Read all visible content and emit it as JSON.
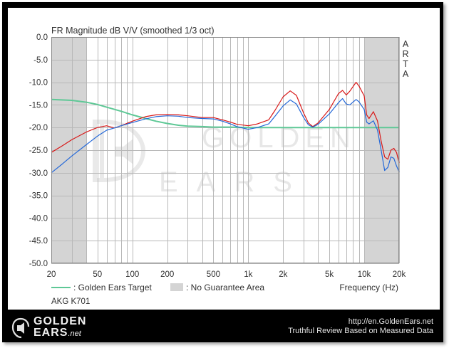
{
  "chart_data": {
    "type": "line",
    "title": "FR Magnitude dB V/V (smoothed 1/3 oct)",
    "xlabel": "Frequency (Hz)",
    "ylabel": "",
    "side_label": [
      "A",
      "R",
      "T",
      "A"
    ],
    "x_scale": "log",
    "xlim": [
      20,
      20000
    ],
    "ylim": [
      -50,
      0
    ],
    "x_ticks": [
      {
        "value": 20,
        "label": "20"
      },
      {
        "value": 50,
        "label": "50"
      },
      {
        "value": 100,
        "label": "100"
      },
      {
        "value": 200,
        "label": "200"
      },
      {
        "value": 500,
        "label": "500"
      },
      {
        "value": 1000,
        "label": "1k"
      },
      {
        "value": 2000,
        "label": "2k"
      },
      {
        "value": 5000,
        "label": "5k"
      },
      {
        "value": 10000,
        "label": "10k"
      },
      {
        "value": 20000,
        "label": "20k"
      }
    ],
    "y_ticks": [
      {
        "value": 0,
        "label": "0.0"
      },
      {
        "value": -5,
        "label": "-5.0"
      },
      {
        "value": -10,
        "label": "-10.0"
      },
      {
        "value": -15,
        "label": "-15.0"
      },
      {
        "value": -20,
        "label": "-20.0"
      },
      {
        "value": -25,
        "label": "-25.0"
      },
      {
        "value": -30,
        "label": "-30.0"
      },
      {
        "value": -35,
        "label": "-35.0"
      },
      {
        "value": -40,
        "label": "-40.0"
      },
      {
        "value": -45,
        "label": "-45.0"
      },
      {
        "value": -50,
        "label": "-50.0"
      }
    ],
    "grid": true,
    "shaded_regions": [
      {
        "name": "No Guarantee Area",
        "x_from": 20,
        "x_to": 40,
        "color": "#d4d4d4"
      },
      {
        "name": "No Guarantee Area",
        "x_from": 10000,
        "x_to": 20000,
        "color": "#d4d4d4"
      }
    ],
    "series": [
      {
        "name": "Golden Ears Target",
        "color": "#5ec896",
        "points": [
          [
            20,
            -13.8
          ],
          [
            30,
            -14.0
          ],
          [
            40,
            -14.4
          ],
          [
            50,
            -14.9
          ],
          [
            60,
            -15.5
          ],
          [
            80,
            -16.4
          ],
          [
            100,
            -17.2
          ],
          [
            130,
            -18.0
          ],
          [
            160,
            -18.6
          ],
          [
            200,
            -19.1
          ],
          [
            250,
            -19.5
          ],
          [
            300,
            -19.7
          ],
          [
            400,
            -19.8
          ],
          [
            500,
            -19.9
          ],
          [
            700,
            -19.9
          ],
          [
            1000,
            -20.0
          ],
          [
            2000,
            -20.0
          ],
          [
            5000,
            -20.0
          ],
          [
            10000,
            -20.0
          ],
          [
            20000,
            -20.0
          ]
        ]
      },
      {
        "name": "AKG K701 (red)",
        "color": "#d81818",
        "points": [
          [
            20,
            -25.5
          ],
          [
            25,
            -24.0
          ],
          [
            30,
            -22.7
          ],
          [
            40,
            -21.0
          ],
          [
            50,
            -20.0
          ],
          [
            60,
            -19.6
          ],
          [
            70,
            -20.1
          ],
          [
            80,
            -19.6
          ],
          [
            100,
            -18.6
          ],
          [
            130,
            -17.6
          ],
          [
            160,
            -17.2
          ],
          [
            200,
            -17.1
          ],
          [
            250,
            -17.2
          ],
          [
            300,
            -17.4
          ],
          [
            400,
            -17.8
          ],
          [
            500,
            -17.8
          ],
          [
            600,
            -18.3
          ],
          [
            700,
            -18.8
          ],
          [
            800,
            -19.3
          ],
          [
            1000,
            -19.6
          ],
          [
            1200,
            -19.2
          ],
          [
            1500,
            -18.3
          ],
          [
            1700,
            -16.2
          ],
          [
            2000,
            -13.2
          ],
          [
            2300,
            -11.9
          ],
          [
            2600,
            -12.9
          ],
          [
            3000,
            -16.8
          ],
          [
            3300,
            -19.0
          ],
          [
            3600,
            -19.8
          ],
          [
            4000,
            -19.0
          ],
          [
            5000,
            -16.0
          ],
          [
            6000,
            -12.5
          ],
          [
            6500,
            -11.8
          ],
          [
            7000,
            -12.8
          ],
          [
            7500,
            -12.0
          ],
          [
            8500,
            -10.0
          ],
          [
            9000,
            -10.8
          ],
          [
            10000,
            -13.0
          ],
          [
            10500,
            -17.2
          ],
          [
            11000,
            -18.0
          ],
          [
            12000,
            -16.5
          ],
          [
            13000,
            -18.5
          ],
          [
            14000,
            -23.0
          ],
          [
            15000,
            -26.5
          ],
          [
            16000,
            -27.0
          ],
          [
            17000,
            -25.0
          ],
          [
            18000,
            -24.6
          ],
          [
            19000,
            -25.5
          ],
          [
            20000,
            -27.8
          ]
        ]
      },
      {
        "name": "AKG K701 (blue)",
        "color": "#2468d8",
        "points": [
          [
            20,
            -30.0
          ],
          [
            25,
            -28.0
          ],
          [
            30,
            -26.3
          ],
          [
            40,
            -23.8
          ],
          [
            50,
            -21.9
          ],
          [
            60,
            -20.6
          ],
          [
            70,
            -20.1
          ],
          [
            80,
            -19.6
          ],
          [
            100,
            -18.9
          ],
          [
            130,
            -18.1
          ],
          [
            160,
            -17.6
          ],
          [
            200,
            -17.4
          ],
          [
            250,
            -17.5
          ],
          [
            300,
            -17.8
          ],
          [
            400,
            -18.0
          ],
          [
            500,
            -18.1
          ],
          [
            600,
            -18.6
          ],
          [
            700,
            -19.2
          ],
          [
            800,
            -19.8
          ],
          [
            1000,
            -20.4
          ],
          [
            1200,
            -20.0
          ],
          [
            1500,
            -19.2
          ],
          [
            1700,
            -17.5
          ],
          [
            2000,
            -15.2
          ],
          [
            2300,
            -13.9
          ],
          [
            2600,
            -14.8
          ],
          [
            3000,
            -17.8
          ],
          [
            3300,
            -19.4
          ],
          [
            3600,
            -19.9
          ],
          [
            4000,
            -19.3
          ],
          [
            5000,
            -17.0
          ],
          [
            6000,
            -14.5
          ],
          [
            6500,
            -13.6
          ],
          [
            7000,
            -14.8
          ],
          [
            7500,
            -15.0
          ],
          [
            8500,
            -13.8
          ],
          [
            9000,
            -14.3
          ],
          [
            10000,
            -16.0
          ],
          [
            10500,
            -18.8
          ],
          [
            11000,
            -19.2
          ],
          [
            12000,
            -18.5
          ],
          [
            13000,
            -20.5
          ],
          [
            14000,
            -25.0
          ],
          [
            15000,
            -29.5
          ],
          [
            16000,
            -28.8
          ],
          [
            17000,
            -26.5
          ],
          [
            18000,
            -26.8
          ],
          [
            19000,
            -28.5
          ],
          [
            20000,
            -29.8
          ]
        ]
      }
    ],
    "legend": [
      {
        "label": ": Golden Ears Target",
        "type": "line",
        "color": "#5ec896"
      },
      {
        "label": ": No Guarantee Area",
        "type": "box",
        "color": "#d4d4d4"
      }
    ],
    "annotation": "AKG K701",
    "watermark_text": [
      "GOLDEN",
      "EARS"
    ]
  },
  "footer": {
    "brand_line1": "GOLDEN",
    "brand_line2": "EARS",
    "brand_suffix": ".net",
    "url": "http://en.GoldenEars.net",
    "tagline": "Truthful Review Based on Measured Data"
  }
}
